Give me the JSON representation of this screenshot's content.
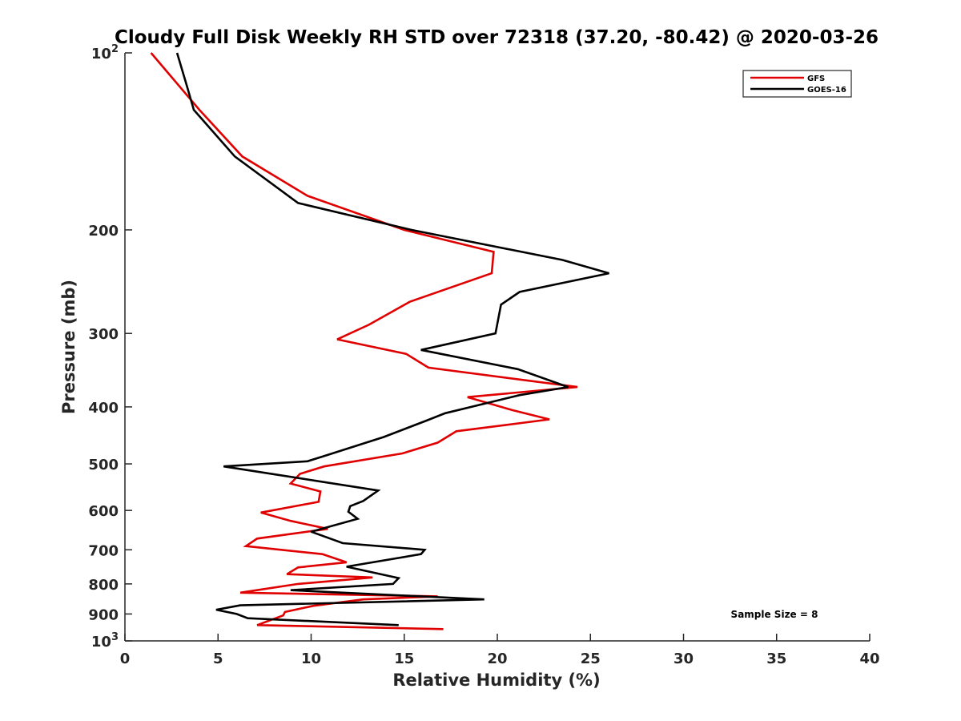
{
  "chart_data": {
    "type": "line",
    "title": "Cloudy Full Disk Weekly RH STD over 72318 (37.20, -80.42) @ 2020-03-26",
    "xlabel": "Relative Humidity (%)",
    "ylabel": "Pressure (mb)",
    "xlim": [
      0,
      40
    ],
    "ylim": [
      100,
      1000
    ],
    "yscale": "log",
    "yreversed": true,
    "x_ticks": [
      0,
      5,
      10,
      15,
      20,
      25,
      30,
      35,
      40
    ],
    "x_tick_labels": [
      "0",
      "5",
      "10",
      "15",
      "20",
      "25",
      "30",
      "35",
      "40"
    ],
    "y_ticks": [
      100,
      200,
      300,
      400,
      500,
      600,
      700,
      800,
      900,
      1000
    ],
    "y_tick_labels": [
      {
        "base": "10",
        "exp": "2"
      },
      {
        "base": "200",
        "exp": ""
      },
      {
        "base": "300",
        "exp": ""
      },
      {
        "base": "400",
        "exp": ""
      },
      {
        "base": "500",
        "exp": ""
      },
      {
        "base": "600",
        "exp": ""
      },
      {
        "base": "700",
        "exp": ""
      },
      {
        "base": "800",
        "exp": ""
      },
      {
        "base": "900",
        "exp": ""
      },
      {
        "base": "10",
        "exp": "3"
      }
    ],
    "grid": false,
    "legend_position": "top-right",
    "series": [
      {
        "name": "GFS",
        "color": "#e00000",
        "points": [
          [
            1.4,
            100
          ],
          [
            4.0,
            125
          ],
          [
            6.3,
            150
          ],
          [
            9.8,
            175
          ],
          [
            15.0,
            200
          ],
          [
            19.8,
            218
          ],
          [
            19.7,
            237
          ],
          [
            15.3,
            265
          ],
          [
            13.1,
            290
          ],
          [
            11.4,
            307
          ],
          [
            15.1,
            325
          ],
          [
            16.3,
            343
          ],
          [
            24.3,
            370
          ],
          [
            18.4,
            385
          ],
          [
            20.8,
            405
          ],
          [
            22.8,
            420
          ],
          [
            17.8,
            440
          ],
          [
            16.8,
            460
          ],
          [
            14.9,
            480
          ],
          [
            10.7,
            505
          ],
          [
            9.4,
            520
          ],
          [
            8.9,
            540
          ],
          [
            10.5,
            557
          ],
          [
            10.4,
            580
          ],
          [
            7.3,
            605
          ],
          [
            8.9,
            625
          ],
          [
            10.9,
            645
          ],
          [
            7.1,
            670
          ],
          [
            6.5,
            690
          ],
          [
            10.6,
            712
          ],
          [
            11.9,
            735
          ],
          [
            9.3,
            750
          ],
          [
            8.7,
            770
          ],
          [
            13.3,
            780
          ],
          [
            9.3,
            800
          ],
          [
            6.2,
            828
          ],
          [
            16.8,
            840
          ],
          [
            12.8,
            850
          ],
          [
            10.1,
            872
          ],
          [
            8.6,
            893
          ],
          [
            8.5,
            905
          ],
          [
            7.1,
            940
          ],
          [
            17.1,
            955
          ]
        ]
      },
      {
        "name": "GOES-16",
        "color": "#000000",
        "points": [
          [
            2.8,
            100
          ],
          [
            3.3,
            113
          ],
          [
            3.7,
            125
          ],
          [
            5.9,
            150
          ],
          [
            9.3,
            180
          ],
          [
            15.4,
            200
          ],
          [
            23.5,
            225
          ],
          [
            26.0,
            237
          ],
          [
            21.2,
            255
          ],
          [
            20.2,
            268
          ],
          [
            19.9,
            300
          ],
          [
            15.9,
            320
          ],
          [
            21.1,
            345
          ],
          [
            23.8,
            370
          ],
          [
            21.2,
            382
          ],
          [
            17.2,
            410
          ],
          [
            16.2,
            422
          ],
          [
            13.9,
            450
          ],
          [
            10.7,
            485
          ],
          [
            9.8,
            495
          ],
          [
            5.3,
            505
          ],
          [
            13.6,
            555
          ],
          [
            12.8,
            578
          ],
          [
            12.1,
            590
          ],
          [
            12.0,
            603
          ],
          [
            12.5,
            620
          ],
          [
            10.0,
            652
          ],
          [
            11.7,
            682
          ],
          [
            16.1,
            700
          ],
          [
            15.9,
            712
          ],
          [
            11.9,
            748
          ],
          [
            14.7,
            782
          ],
          [
            14.4,
            800
          ],
          [
            8.9,
            820
          ],
          [
            19.3,
            850
          ],
          [
            6.2,
            870
          ],
          [
            4.9,
            885
          ],
          [
            6.0,
            900
          ],
          [
            6.6,
            915
          ],
          [
            14.7,
            940
          ]
        ]
      }
    ],
    "annotations": [
      "Sample Size = 8"
    ]
  }
}
